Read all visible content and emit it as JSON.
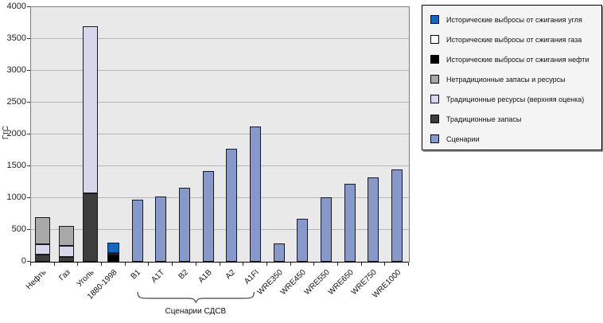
{
  "chart_data": {
    "type": "bar",
    "stacked": true,
    "title": "",
    "xlabel": "",
    "ylabel": "ГтС",
    "ylim": [
      0,
      4000
    ],
    "yticks": [
      0,
      500,
      1000,
      1500,
      2000,
      2500,
      3000,
      3500,
      4000
    ],
    "grid": true,
    "legend_position": "outside-top-right",
    "colors": {
      "plot_bg": "#e9e9e9",
      "grid": "#b5b5b5",
      "axis": "#000000",
      "legend_bg": "#f4f4f4",
      "legend_shadow": "#9a9a9a"
    },
    "series": [
      {
        "key": "coal_hist",
        "label": "Исторические выбросы от сжигания угля",
        "color": "#1168c0"
      },
      {
        "key": "gas_hist",
        "label": "Исторические выбросы от сжигания газа",
        "color": "#ffffff"
      },
      {
        "key": "oil_hist",
        "label": "Исторические выбросы от сжигания нефти",
        "color": "#000000"
      },
      {
        "key": "unconv",
        "label": "Нетрадиционные запасы и ресурсы",
        "color": "#a8a8a8"
      },
      {
        "key": "conv_resources",
        "label": "Традиционные ресурсы (верхняя оценка)",
        "color": "#d6d6ec"
      },
      {
        "key": "conv_reserves",
        "label": "Традиционные запасы",
        "color": "#3d3d3d"
      },
      {
        "key": "scenario",
        "label": "Сценарии",
        "color": "#8798cb"
      }
    ],
    "categories": [
      "Нефть",
      "Газ",
      "Уголь",
      "1880-1998",
      "B1",
      "A1T",
      "B2",
      "A1B",
      "A2",
      "A1FI",
      "WRE350",
      "WRE450",
      "WRE550",
      "WRE650",
      "WRE750",
      "WRE1000"
    ],
    "bars": [
      {
        "category": "Нефть",
        "segments": [
          {
            "series": "conv_reserves",
            "value": 110
          },
          {
            "series": "conv_resources",
            "value": 170
          },
          {
            "series": "unconv",
            "value": 420
          }
        ]
      },
      {
        "category": "Газ",
        "segments": [
          {
            "series": "conv_reserves",
            "value": 70
          },
          {
            "series": "conv_resources",
            "value": 180
          },
          {
            "series": "unconv",
            "value": 310
          }
        ]
      },
      {
        "category": "Уголь",
        "segments": [
          {
            "series": "conv_reserves",
            "value": 1070
          },
          {
            "series": "conv_resources",
            "value": 2630
          }
        ]
      },
      {
        "category": "1880-1998",
        "segments": [
          {
            "series": "oil_hist",
            "value": 110
          },
          {
            "series": "gas_hist",
            "value": 30
          },
          {
            "series": "coal_hist",
            "value": 160
          }
        ]
      },
      {
        "category": "B1",
        "segments": [
          {
            "series": "scenario",
            "value": 980
          }
        ]
      },
      {
        "category": "A1T",
        "segments": [
          {
            "series": "scenario",
            "value": 1030
          }
        ]
      },
      {
        "category": "B2",
        "segments": [
          {
            "series": "scenario",
            "value": 1160
          }
        ]
      },
      {
        "category": "A1B",
        "segments": [
          {
            "series": "scenario",
            "value": 1430
          }
        ]
      },
      {
        "category": "A2",
        "segments": [
          {
            "series": "scenario",
            "value": 1780
          }
        ]
      },
      {
        "category": "A1FI",
        "segments": [
          {
            "series": "scenario",
            "value": 2130
          }
        ]
      },
      {
        "category": "WRE350",
        "segments": [
          {
            "series": "scenario",
            "value": 290
          }
        ]
      },
      {
        "category": "WRE450",
        "segments": [
          {
            "series": "scenario",
            "value": 670
          }
        ]
      },
      {
        "category": "WRE550",
        "segments": [
          {
            "series": "scenario",
            "value": 1010
          }
        ]
      },
      {
        "category": "WRE650",
        "segments": [
          {
            "series": "scenario",
            "value": 1220
          }
        ]
      },
      {
        "category": "WRE750",
        "segments": [
          {
            "series": "scenario",
            "value": 1330
          }
        ]
      },
      {
        "category": "WRE1000",
        "segments": [
          {
            "series": "scenario",
            "value": 1450
          }
        ]
      }
    ],
    "annotation": {
      "label": "Сценарии СДСВ",
      "span_from": "B1",
      "span_to": "A1FI"
    }
  }
}
